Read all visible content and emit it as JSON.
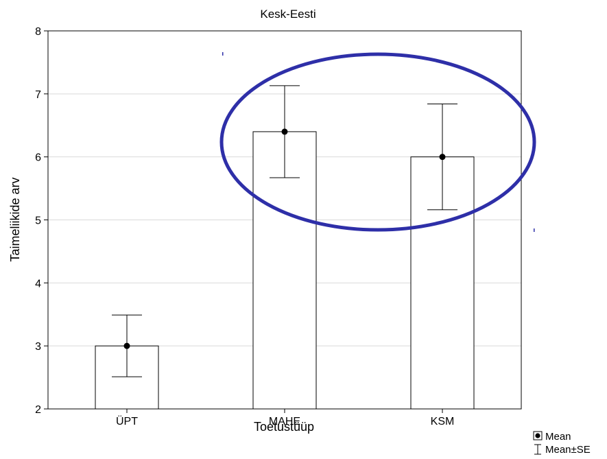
{
  "chart_data": {
    "type": "bar",
    "title": "Kesk-Eesti",
    "xlabel": "Toetustüüp",
    "ylabel": "Taimeliikide arv",
    "ylim": [
      2,
      8
    ],
    "yticks": [
      "2",
      "3",
      "4",
      "5",
      "6",
      "7",
      "8"
    ],
    "grid": true,
    "categories": [
      "ÜPT",
      "MAHE",
      "KSM"
    ],
    "series": [
      {
        "values": [
          3.0,
          6.4,
          6.0
        ],
        "error_low": [
          2.51,
          5.67,
          5.16
        ],
        "error_high": [
          3.49,
          7.13,
          6.84
        ]
      }
    ],
    "legend": {
      "position": "bottom-right",
      "items": [
        {
          "label": "Mean",
          "icon": "filled-dot-in-square-icon"
        },
        {
          "label": "Mean±SE",
          "icon": "error-bar-icon"
        }
      ]
    },
    "annotation": {
      "shape": "ellipse",
      "color": "#2e2fa8",
      "encloses": [
        "MAHE",
        "KSM"
      ]
    },
    "colors": {
      "bar_fill": "#ffffff",
      "bar_stroke": "#000000",
      "grid": "#d9d9d9",
      "highlight": "#2e2fa8"
    }
  }
}
